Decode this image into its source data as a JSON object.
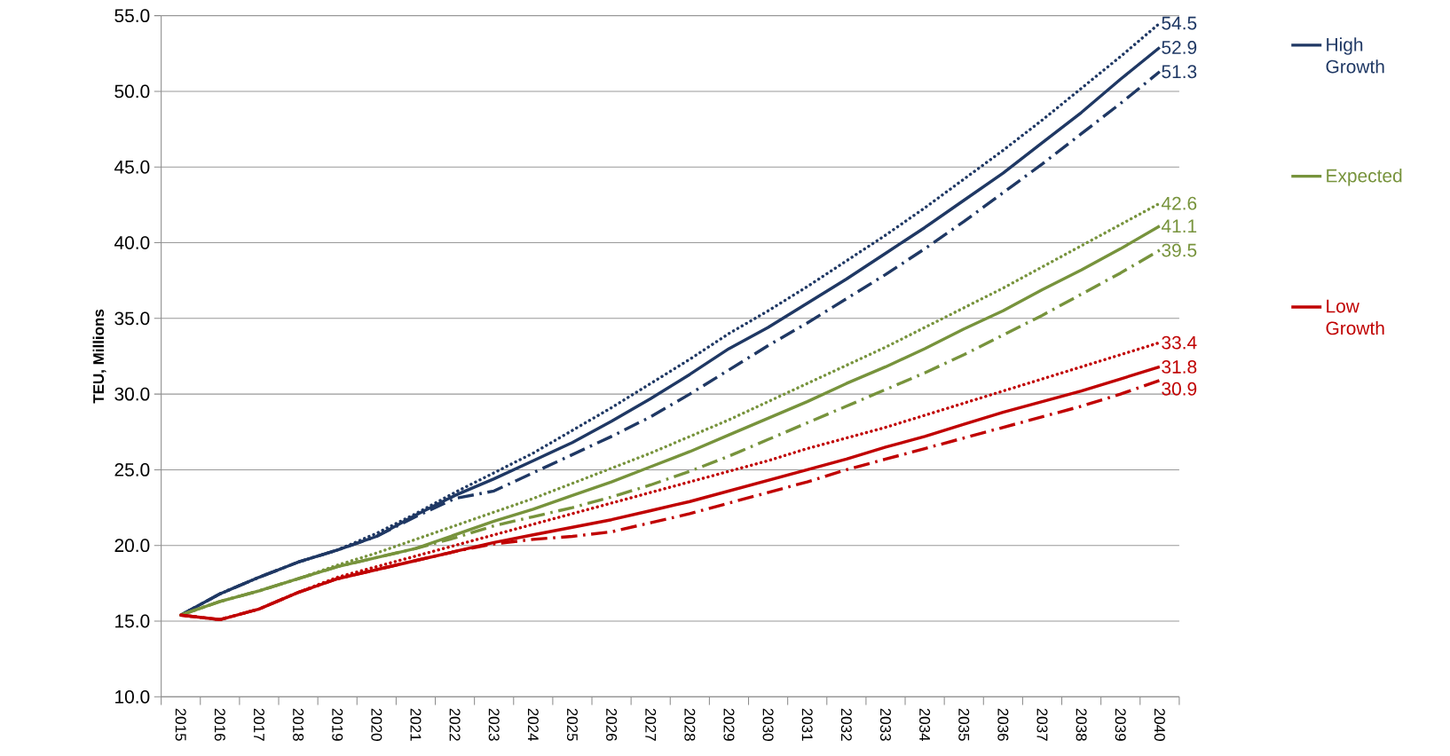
{
  "chart_data": {
    "type": "line",
    "ylabel": "TEU, Millions",
    "categories": [
      "2015",
      "2016",
      "2017",
      "2018",
      "2019",
      "2020",
      "2021",
      "2022",
      "2023",
      "2024",
      "2025",
      "2026",
      "2027",
      "2028",
      "2029",
      "2030",
      "2031",
      "2032",
      "2033",
      "2034",
      "2035",
      "2036",
      "2037",
      "2038",
      "2039",
      "2040"
    ],
    "ylim": [
      10,
      55
    ],
    "yticks": [
      {
        "value": 10,
        "label": "10.0"
      },
      {
        "value": 15,
        "label": "15.0"
      },
      {
        "value": 20,
        "label": "20.0"
      },
      {
        "value": 25,
        "label": "25.0"
      },
      {
        "value": 30,
        "label": "30.0"
      },
      {
        "value": 35,
        "label": "35.0"
      },
      {
        "value": 40,
        "label": "40.0"
      },
      {
        "value": 45,
        "label": "45.0"
      },
      {
        "value": 50,
        "label": "50.0"
      },
      {
        "value": 55,
        "label": "55.0"
      }
    ],
    "grid": "y",
    "legend": "right",
    "series": [
      {
        "color": "#1f3864",
        "line_style": "dotted",
        "values": [
          15.4,
          16.8,
          17.9,
          18.9,
          19.7,
          20.8,
          22.1,
          23.5,
          24.8,
          26.1,
          27.6,
          29.1,
          30.7,
          32.3,
          34.0,
          35.5,
          37.1,
          38.8,
          40.5,
          42.3,
          44.2,
          46.1,
          48.1,
          50.2,
          52.3,
          54.5
        ],
        "value_labels": [
          null,
          null,
          null,
          null,
          null,
          null,
          null,
          null,
          null,
          null,
          null,
          null,
          null,
          null,
          null,
          null,
          null,
          null,
          null,
          null,
          null,
          null,
          null,
          null,
          null,
          "54.5"
        ]
      },
      {
        "name": "High Growth",
        "color": "#1f3864",
        "line_style": "solid",
        "values": [
          15.4,
          16.8,
          17.9,
          18.9,
          19.7,
          20.6,
          22.0,
          23.3,
          24.4,
          25.6,
          26.8,
          28.2,
          29.7,
          31.3,
          33.0,
          34.4,
          36.0,
          37.6,
          39.3,
          41.0,
          42.8,
          44.6,
          46.6,
          48.6,
          50.8,
          52.9
        ],
        "value_labels": [
          null,
          null,
          null,
          null,
          null,
          null,
          null,
          null,
          null,
          null,
          null,
          null,
          null,
          null,
          null,
          null,
          null,
          null,
          null,
          null,
          null,
          null,
          null,
          null,
          null,
          "52.9"
        ]
      },
      {
        "color": "#1f3864",
        "line_style": "dashdot",
        "values": [
          15.4,
          16.8,
          17.9,
          18.9,
          19.7,
          20.6,
          21.9,
          23.1,
          23.6,
          24.8,
          26.0,
          27.2,
          28.5,
          30.0,
          31.6,
          33.2,
          34.7,
          36.3,
          37.9,
          39.6,
          41.4,
          43.3,
          45.2,
          47.2,
          49.2,
          51.3
        ],
        "value_labels": [
          null,
          null,
          null,
          null,
          null,
          null,
          null,
          null,
          null,
          null,
          null,
          null,
          null,
          null,
          null,
          null,
          null,
          null,
          null,
          null,
          null,
          null,
          null,
          null,
          null,
          "51.3"
        ]
      },
      {
        "color": "#77933c",
        "line_style": "dotted",
        "values": [
          15.4,
          16.3,
          17.0,
          17.8,
          18.7,
          19.5,
          20.4,
          21.3,
          22.2,
          23.1,
          24.1,
          25.1,
          26.1,
          27.2,
          28.3,
          29.5,
          30.7,
          31.9,
          33.1,
          34.4,
          35.7,
          37.0,
          38.4,
          39.8,
          41.2,
          42.6
        ],
        "value_labels": [
          null,
          null,
          null,
          null,
          null,
          null,
          null,
          null,
          null,
          null,
          null,
          null,
          null,
          null,
          null,
          null,
          null,
          null,
          null,
          null,
          null,
          null,
          null,
          null,
          null,
          "42.6"
        ]
      },
      {
        "name": "Expected",
        "color": "#77933c",
        "line_style": "solid",
        "values": [
          15.4,
          16.3,
          17.0,
          17.8,
          18.6,
          19.2,
          19.8,
          20.7,
          21.6,
          22.4,
          23.3,
          24.2,
          25.2,
          26.2,
          27.3,
          28.4,
          29.5,
          30.7,
          31.8,
          33.0,
          34.3,
          35.5,
          36.9,
          38.2,
          39.6,
          41.1
        ],
        "value_labels": [
          null,
          null,
          null,
          null,
          null,
          null,
          null,
          null,
          null,
          null,
          null,
          null,
          null,
          null,
          null,
          null,
          null,
          null,
          null,
          null,
          null,
          null,
          null,
          null,
          null,
          "41.1"
        ]
      },
      {
        "color": "#77933c",
        "line_style": "dashdot",
        "values": [
          15.4,
          16.3,
          17.0,
          17.8,
          18.6,
          19.2,
          19.8,
          20.5,
          21.3,
          21.9,
          22.5,
          23.2,
          24.0,
          24.9,
          25.9,
          27.0,
          28.1,
          29.2,
          30.3,
          31.4,
          32.6,
          33.9,
          35.2,
          36.6,
          38.0,
          39.5
        ],
        "value_labels": [
          null,
          null,
          null,
          null,
          null,
          null,
          null,
          null,
          null,
          null,
          null,
          null,
          null,
          null,
          null,
          null,
          null,
          null,
          null,
          null,
          null,
          null,
          null,
          null,
          null,
          "39.5"
        ]
      },
      {
        "color": "#c00000",
        "line_style": "dotted",
        "values": [
          15.4,
          15.1,
          15.8,
          16.9,
          17.9,
          18.6,
          19.3,
          20.0,
          20.7,
          21.4,
          22.1,
          22.8,
          23.5,
          24.2,
          24.9,
          25.6,
          26.4,
          27.1,
          27.8,
          28.6,
          29.4,
          30.2,
          31.0,
          31.8,
          32.6,
          33.4
        ],
        "value_labels": [
          null,
          null,
          null,
          null,
          null,
          null,
          null,
          null,
          null,
          null,
          null,
          null,
          null,
          null,
          null,
          null,
          null,
          null,
          null,
          null,
          null,
          null,
          null,
          null,
          null,
          "33.4"
        ]
      },
      {
        "name": "Low Growth",
        "color": "#c00000",
        "line_style": "solid",
        "values": [
          15.4,
          15.1,
          15.8,
          16.9,
          17.8,
          18.4,
          19.0,
          19.6,
          20.2,
          20.7,
          21.2,
          21.7,
          22.3,
          22.9,
          23.6,
          24.3,
          25.0,
          25.7,
          26.5,
          27.2,
          28.0,
          28.8,
          29.5,
          30.2,
          31.0,
          31.8
        ],
        "value_labels": [
          null,
          null,
          null,
          null,
          null,
          null,
          null,
          null,
          null,
          null,
          null,
          null,
          null,
          null,
          null,
          null,
          null,
          null,
          null,
          null,
          null,
          null,
          null,
          null,
          null,
          "31.8"
        ]
      },
      {
        "color": "#c00000",
        "line_style": "dashdot",
        "values": [
          15.4,
          15.1,
          15.8,
          16.9,
          17.8,
          18.4,
          19.0,
          19.6,
          20.1,
          20.4,
          20.6,
          20.9,
          21.5,
          22.1,
          22.8,
          23.5,
          24.2,
          25.0,
          25.7,
          26.4,
          27.1,
          27.8,
          28.5,
          29.2,
          30.0,
          30.9
        ],
        "value_labels": [
          null,
          null,
          null,
          null,
          null,
          null,
          null,
          null,
          null,
          null,
          null,
          null,
          null,
          null,
          null,
          null,
          null,
          null,
          null,
          null,
          null,
          null,
          null,
          null,
          null,
          "30.9"
        ]
      }
    ]
  }
}
